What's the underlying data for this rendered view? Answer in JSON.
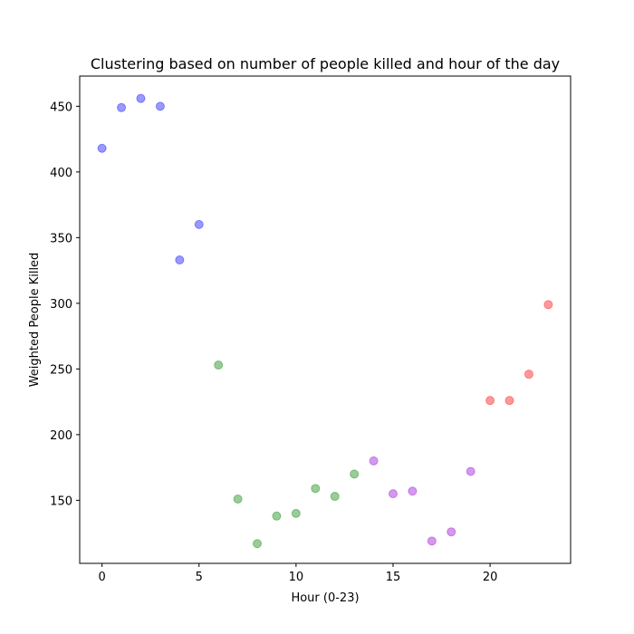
{
  "chart_data": {
    "type": "scatter",
    "title": "Clustering based on number of people killed and hour of the day",
    "xlabel": "Hour (0-23)",
    "ylabel": "Weighted People Killed",
    "xlim": [
      -1.15,
      24.15
    ],
    "ylim": [
      102,
      473
    ],
    "xticks": [
      0,
      5,
      10,
      15,
      20
    ],
    "yticks": [
      150,
      200,
      250,
      300,
      350,
      400,
      450
    ],
    "grid": false,
    "legend": "none",
    "clusters": [
      {
        "color": "#0000ff",
        "points": [
          {
            "x": 0,
            "y": 418
          },
          {
            "x": 1,
            "y": 449
          },
          {
            "x": 2,
            "y": 456
          },
          {
            "x": 3,
            "y": 450
          },
          {
            "x": 4,
            "y": 333
          },
          {
            "x": 5,
            "y": 360
          }
        ]
      },
      {
        "color": "#008000",
        "points": [
          {
            "x": 6,
            "y": 253
          },
          {
            "x": 7,
            "y": 151
          },
          {
            "x": 8,
            "y": 117
          },
          {
            "x": 9,
            "y": 138
          },
          {
            "x": 10,
            "y": 140
          },
          {
            "x": 11,
            "y": 159
          },
          {
            "x": 12,
            "y": 153
          },
          {
            "x": 13,
            "y": 170
          }
        ]
      },
      {
        "color": "#9400d3",
        "points": [
          {
            "x": 14,
            "y": 180
          },
          {
            "x": 15,
            "y": 155
          },
          {
            "x": 16,
            "y": 157
          },
          {
            "x": 17,
            "y": 119
          },
          {
            "x": 18,
            "y": 126
          },
          {
            "x": 19,
            "y": 172
          }
        ]
      },
      {
        "color": "#ff0000",
        "points": [
          {
            "x": 20,
            "y": 226
          },
          {
            "x": 21,
            "y": 226
          },
          {
            "x": 22,
            "y": 246
          },
          {
            "x": 23,
            "y": 299
          }
        ]
      }
    ]
  }
}
